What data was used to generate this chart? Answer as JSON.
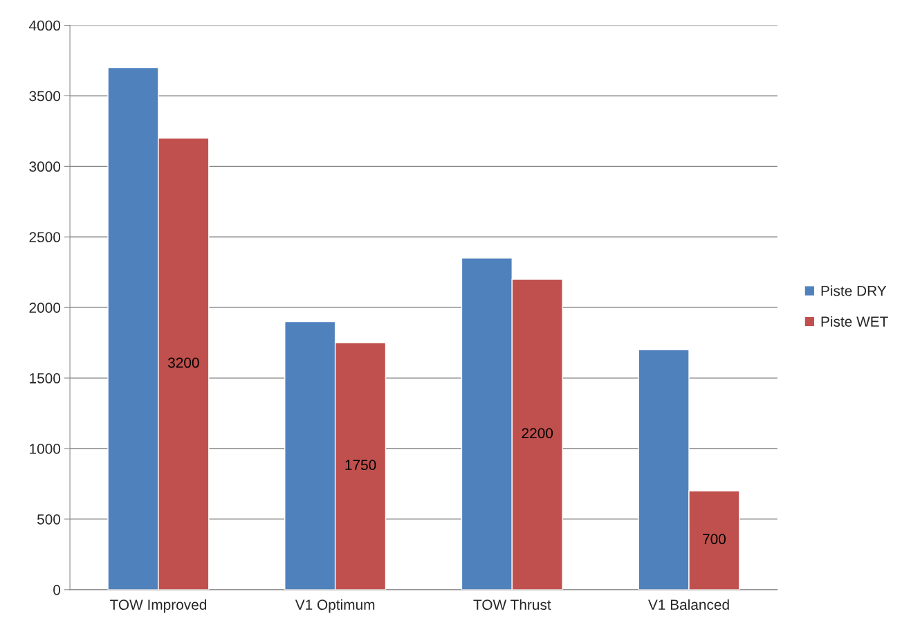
{
  "chart_data": {
    "type": "bar",
    "categories": [
      "TOW Improved",
      "V1 Optimum",
      "TOW Thrust",
      "V1 Balanced"
    ],
    "series": [
      {
        "name": "Piste DRY",
        "color": "#4f81bd",
        "values": [
          3700,
          1900,
          2350,
          1700
        ]
      },
      {
        "name": "Piste WET",
        "color": "#c0504d",
        "values": [
          3200,
          1750,
          2200,
          700
        ],
        "value_labels": [
          "3200",
          "1750",
          "2200",
          "700"
        ]
      }
    ],
    "ylim": [
      0,
      4000
    ],
    "yticks": [
      0,
      500,
      1000,
      1500,
      2000,
      2500,
      3000,
      3500,
      4000
    ],
    "grid": "y",
    "legend": "right"
  }
}
